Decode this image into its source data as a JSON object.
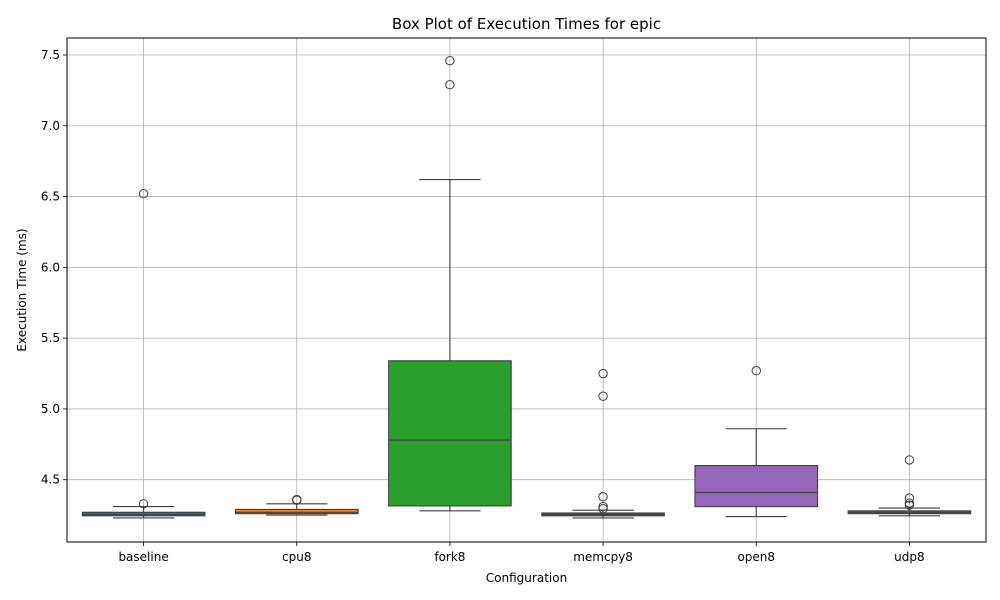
{
  "chart_data": {
    "type": "box",
    "title": "Box Plot of Execution Times for epic",
    "xlabel": "Configuration",
    "ylabel": "Execution Time (ms)",
    "ylim": [
      4.06,
      7.62
    ],
    "yticks": [
      4.5,
      5.0,
      5.5,
      6.0,
      6.5,
      7.0,
      7.5
    ],
    "ytick_labels": [
      "4.5",
      "5.0",
      "5.5",
      "6.0",
      "6.5",
      "7.0",
      "7.5"
    ],
    "grid": true,
    "categories": [
      "baseline",
      "cpu8",
      "fork8",
      "memcpy8",
      "open8",
      "udp8"
    ],
    "series": [
      {
        "whisker_low": 4.23,
        "q1": 4.245,
        "median": 4.255,
        "q3": 4.27,
        "whisker_high": 4.31,
        "outliers": [
          6.52,
          4.33
        ],
        "color": "#1f77b4"
      },
      {
        "whisker_low": 4.25,
        "q1": 4.26,
        "median": 4.27,
        "q3": 4.29,
        "whisker_high": 4.33,
        "outliers": [
          4.36,
          4.355
        ],
        "color": "#ff7f0e"
      },
      {
        "whisker_low": 4.28,
        "q1": 4.315,
        "median": 4.78,
        "q3": 5.34,
        "whisker_high": 6.62,
        "outliers": [
          7.46,
          7.29
        ],
        "color": "#2ca02c"
      },
      {
        "whisker_low": 4.23,
        "q1": 4.245,
        "median": 4.255,
        "q3": 4.265,
        "whisker_high": 4.285,
        "outliers": [
          5.25,
          5.09,
          4.38,
          4.31,
          4.295
        ],
        "color": "#d62728"
      },
      {
        "whisker_low": 4.24,
        "q1": 4.31,
        "median": 4.41,
        "q3": 4.6,
        "whisker_high": 4.86,
        "outliers": [
          5.27
        ],
        "color": "#9467bd"
      },
      {
        "whisker_low": 4.245,
        "q1": 4.26,
        "median": 4.27,
        "q3": 4.28,
        "whisker_high": 4.3,
        "outliers": [
          4.64,
          4.37,
          4.335,
          4.32
        ],
        "color": "#8c564b"
      }
    ]
  }
}
